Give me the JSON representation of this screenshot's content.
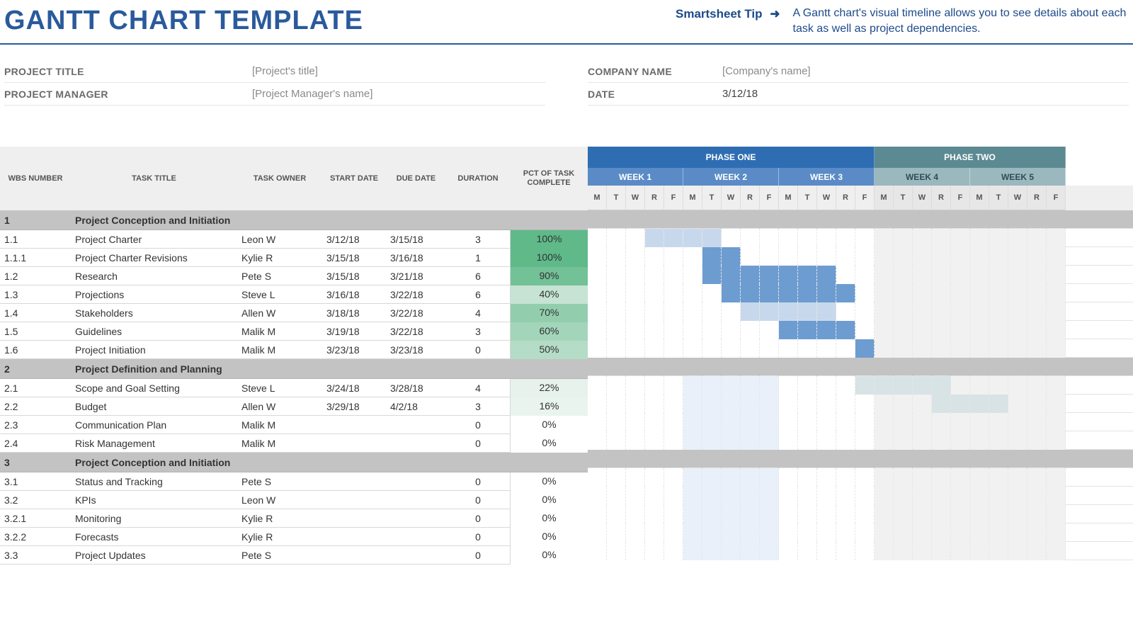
{
  "header": {
    "title": "GANTT CHART TEMPLATE",
    "tip_label": "Smartsheet Tip",
    "tip_arrow": "➜",
    "tip_text": "A Gantt chart's visual timeline allows you to see details about each task as well as project dependencies."
  },
  "meta": {
    "project_title_label": "PROJECT TITLE",
    "project_title_value": "[Project's title]",
    "project_manager_label": "PROJECT MANAGER",
    "project_manager_value": "[Project Manager's name]",
    "company_label": "COMPANY NAME",
    "company_value": "[Company's name]",
    "date_label": "DATE",
    "date_value": "3/12/18"
  },
  "columns": {
    "wbs": "WBS NUMBER",
    "title": "TASK TITLE",
    "owner": "TASK OWNER",
    "start": "START DATE",
    "due": "DUE DATE",
    "duration": "DURATION",
    "pct": "PCT OF TASK COMPLETE"
  },
  "timeline": {
    "phases": [
      {
        "label": "PHASE ONE",
        "weeks": 3,
        "bg": "#2f6db3",
        "week_bg": "#5a8bc6",
        "week_fg": "#ffffff"
      },
      {
        "label": "PHASE TWO",
        "weeks": 2,
        "bg": "#5c8a93",
        "week_bg": "#9bb8be",
        "week_fg": "#2e4d56"
      }
    ],
    "weeks": [
      "WEEK 1",
      "WEEK 2",
      "WEEK 3",
      "WEEK 4",
      "WEEK 5"
    ],
    "days": [
      "M",
      "T",
      "W",
      "R",
      "F"
    ],
    "day_width": 27,
    "phase1_cell_bg": "#ffffff",
    "phase2_cell_bg": "#f1f1f1",
    "bar_phase1": "#6d9cd1",
    "bar_phase1_light": "#c8d8ec",
    "bar_phase2": "#a9c4c9",
    "bar_phase2_light": "#d7e3e5"
  },
  "tasks": [
    {
      "type": "section",
      "wbs": "1",
      "title": "Project Conception and Initiation"
    },
    {
      "type": "task",
      "wbs": "1.1",
      "title": "Project Charter",
      "owner": "Leon W",
      "start": "3/12/18",
      "due": "3/15/18",
      "dur": "3",
      "pct": 100,
      "bar_start": 3,
      "bar_len": 4,
      "light": true
    },
    {
      "type": "task",
      "wbs": "1.1.1",
      "title": "Project Charter Revisions",
      "owner": "Kylie R",
      "start": "3/15/18",
      "due": "3/16/18",
      "dur": "1",
      "pct": 100,
      "bar_start": 6,
      "bar_len": 2,
      "light": false
    },
    {
      "type": "task",
      "wbs": "1.2",
      "title": "Research",
      "owner": "Pete S",
      "start": "3/15/18",
      "due": "3/21/18",
      "dur": "6",
      "pct": 90,
      "bar_start": 6,
      "bar_len": 7,
      "light": false
    },
    {
      "type": "task",
      "wbs": "1.3",
      "title": "Projections",
      "owner": "Steve L",
      "start": "3/16/18",
      "due": "3/22/18",
      "dur": "6",
      "pct": 40,
      "bar_start": 7,
      "bar_len": 7,
      "light": false
    },
    {
      "type": "task",
      "wbs": "1.4",
      "title": "Stakeholders",
      "owner": "Allen W",
      "start": "3/18/18",
      "due": "3/22/18",
      "dur": "4",
      "pct": 70,
      "bar_start": 8,
      "bar_len": 5,
      "light": true
    },
    {
      "type": "task",
      "wbs": "1.5",
      "title": "Guidelines",
      "owner": "Malik M",
      "start": "3/19/18",
      "due": "3/22/18",
      "dur": "3",
      "pct": 60,
      "bar_start": 10,
      "bar_len": 4,
      "light": false
    },
    {
      "type": "task",
      "wbs": "1.6",
      "title": "Project Initiation",
      "owner": "Malik M",
      "start": "3/23/18",
      "due": "3/23/18",
      "dur": "0",
      "pct": 50,
      "bar_start": 14,
      "bar_len": 1,
      "light": false
    },
    {
      "type": "section",
      "wbs": "2",
      "title": "Project Definition and Planning"
    },
    {
      "type": "task",
      "wbs": "2.1",
      "title": "Scope and Goal Setting",
      "owner": "Steve L",
      "start": "3/24/18",
      "due": "3/28/18",
      "dur": "4",
      "pct": 22,
      "bar_start": 14,
      "bar_len": 5,
      "light": true,
      "phase": 2,
      "extra_light": [
        [
          5,
          10
        ]
      ]
    },
    {
      "type": "task",
      "wbs": "2.2",
      "title": "Budget",
      "owner": "Allen W",
      "start": "3/29/18",
      "due": "4/2/18",
      "dur": "3",
      "pct": 16,
      "bar_start": 18,
      "bar_len": 4,
      "light": true,
      "phase": 2,
      "extra_light": [
        [
          5,
          10
        ]
      ]
    },
    {
      "type": "task",
      "wbs": "2.3",
      "title": "Communication Plan",
      "owner": "Malik M",
      "start": "",
      "due": "",
      "dur": "0",
      "pct": 0,
      "extra_light": [
        [
          5,
          10
        ]
      ]
    },
    {
      "type": "task",
      "wbs": "2.4",
      "title": "Risk Management",
      "owner": "Malik M",
      "start": "",
      "due": "",
      "dur": "0",
      "pct": 0,
      "extra_light": [
        [
          5,
          10
        ]
      ]
    },
    {
      "type": "section",
      "wbs": "3",
      "title": "Project Conception and Initiation"
    },
    {
      "type": "task",
      "wbs": "3.1",
      "title": "Status and Tracking",
      "owner": "Pete S",
      "start": "",
      "due": "",
      "dur": "0",
      "pct": 0,
      "extra_light": [
        [
          5,
          10
        ]
      ]
    },
    {
      "type": "task",
      "wbs": "3.2",
      "title": "KPIs",
      "owner": "Leon W",
      "start": "",
      "due": "",
      "dur": "0",
      "pct": 0,
      "extra_light": [
        [
          5,
          10
        ]
      ]
    },
    {
      "type": "task",
      "wbs": "3.2.1",
      "title": "Monitoring",
      "owner": "Kylie R",
      "start": "",
      "due": "",
      "dur": "0",
      "pct": 0,
      "extra_light": [
        [
          5,
          10
        ]
      ]
    },
    {
      "type": "task",
      "wbs": "3.2.2",
      "title": "Forecasts",
      "owner": "Kylie R",
      "start": "",
      "due": "",
      "dur": "0",
      "pct": 0,
      "extra_light": [
        [
          5,
          10
        ]
      ]
    },
    {
      "type": "task",
      "wbs": "3.3",
      "title": "Project Updates",
      "owner": "Pete S",
      "start": "",
      "due": "",
      "dur": "0",
      "pct": 0,
      "extra_light": [
        [
          5,
          10
        ]
      ]
    }
  ],
  "pct_colors": {
    "0": "#ffffff",
    "16": "#eaf4ee",
    "22": "#e6f2eb",
    "40": "#c6e3d3",
    "50": "#b4dcc6",
    "60": "#a3d5ba",
    "70": "#92cead",
    "90": "#72c197",
    "100": "#5fb989"
  }
}
